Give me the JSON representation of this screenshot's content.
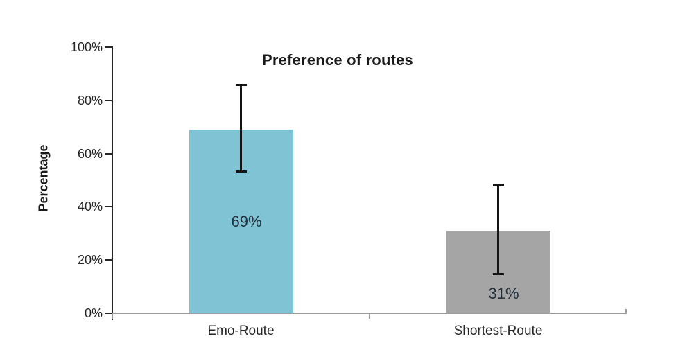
{
  "chart_data": {
    "type": "bar",
    "title": "Preference of routes",
    "xlabel": "",
    "ylabel": "Percentage",
    "categories": [
      "Emo-Route",
      "Shortest-Route"
    ],
    "values": [
      69,
      31
    ],
    "bar_labels": [
      "69%",
      "31%"
    ],
    "bar_label_pos_pct": [
      34.4,
      7.3
    ],
    "bar_colors": [
      "#80C3D4",
      "#A5A5A5"
    ],
    "error_bars": [
      {
        "low": 53,
        "high": 86
      },
      {
        "low": 14.5,
        "high": 48.5
      }
    ],
    "ylim": [
      0,
      100
    ],
    "ytick_values": [
      0,
      20,
      40,
      60,
      80,
      100
    ],
    "ytick_labels": [
      "0%",
      "20%",
      "40%",
      "60%",
      "80%",
      "100%"
    ],
    "grid": false,
    "legend_position": "none",
    "colors": {
      "background": "#FFFFFF",
      "y_axis": "#262626",
      "x_axis": "#9B9B9B",
      "error_bar": "#141414",
      "text": "#262626"
    }
  }
}
